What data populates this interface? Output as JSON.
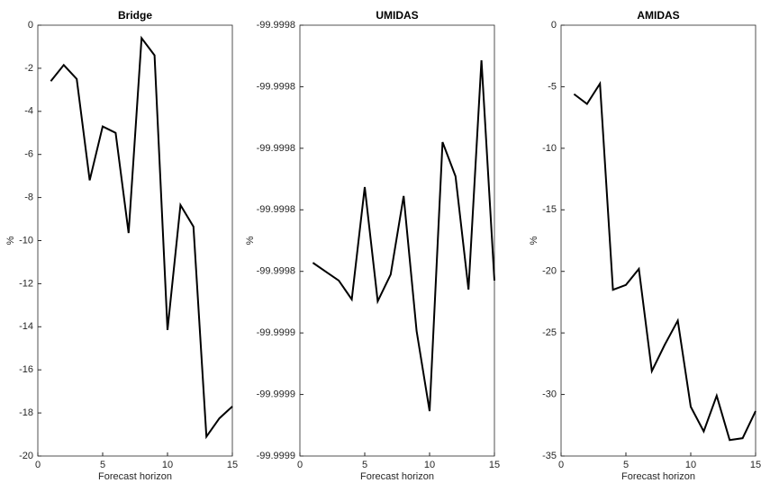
{
  "chart_data": [
    {
      "type": "line",
      "title": "Bridge",
      "xlabel": "Forecast horizon",
      "ylabel": "%",
      "color": "#000000",
      "x": [
        1,
        2,
        3,
        4,
        5,
        6,
        7,
        8,
        9,
        10,
        11,
        12,
        13,
        14,
        15
      ],
      "values": [
        -2.6,
        -1.85,
        -2.5,
        -7.2,
        -4.7,
        -5.0,
        -9.65,
        -0.6,
        -1.4,
        -14.15,
        -8.35,
        -9.35,
        -19.1,
        -18.25,
        -17.7
      ],
      "xlim": [
        0,
        15
      ],
      "xticks": [
        0,
        5,
        10,
        15
      ],
      "ylim": [
        -20,
        0
      ],
      "yticks": [
        -20,
        -18,
        -16,
        -14,
        -12,
        -10,
        -8,
        -6,
        -4,
        -2,
        0
      ]
    },
    {
      "type": "line",
      "title": "UMIDAS",
      "xlabel": "Forecast horizon",
      "ylabel": "%",
      "color": "#000000",
      "x": [
        1,
        2,
        3,
        4,
        5,
        6,
        7,
        8,
        9,
        10,
        11,
        12,
        13,
        14,
        15
      ],
      "values": [
        -99.9998372,
        -99.9998401,
        -99.999843,
        -99.9998491,
        -99.9998126,
        -99.9998497,
        -99.999841,
        -99.9998155,
        -99.9998594,
        -99.9998854,
        -99.999798,
        -99.9998091,
        -99.9998459,
        -99.9997714,
        -99.999843
      ],
      "xlim": [
        0,
        15
      ],
      "xticks": [
        0,
        5,
        10,
        15
      ],
      "ylim": [
        -99.9999,
        -99.99976
      ],
      "yticks": [
        {
          "value": -99.9999,
          "label": "-99.9999"
        },
        {
          "value": -99.99988,
          "label": "-99.9999"
        },
        {
          "value": -99.99986,
          "label": "-99.9999"
        },
        {
          "value": -99.99984,
          "label": "-99.9998"
        },
        {
          "value": -99.99982,
          "label": "-99.9998"
        },
        {
          "value": -99.9998,
          "label": "-99.9998"
        },
        {
          "value": -99.99978,
          "label": "-99.9998"
        },
        {
          "value": -99.99976,
          "label": "-99.9998"
        }
      ]
    },
    {
      "type": "line",
      "title": "AMIDAS",
      "xlabel": "Forecast horizon",
      "ylabel": "%",
      "color": "#000000",
      "x": [
        1,
        2,
        3,
        4,
        5,
        6,
        7,
        8,
        9,
        10,
        11,
        12,
        13,
        14,
        15
      ],
      "values": [
        -5.6,
        -6.4,
        -4.75,
        -21.5,
        -21.1,
        -19.8,
        -28.1,
        -25.95,
        -24.0,
        -31.0,
        -33.0,
        -30.1,
        -33.7,
        -33.55,
        -31.35
      ],
      "xlim": [
        0,
        15
      ],
      "xticks": [
        0,
        5,
        10,
        15
      ],
      "ylim": [
        -35,
        0
      ],
      "yticks": [
        -35,
        -30,
        -25,
        -20,
        -15,
        -10,
        -5,
        0
      ]
    }
  ]
}
